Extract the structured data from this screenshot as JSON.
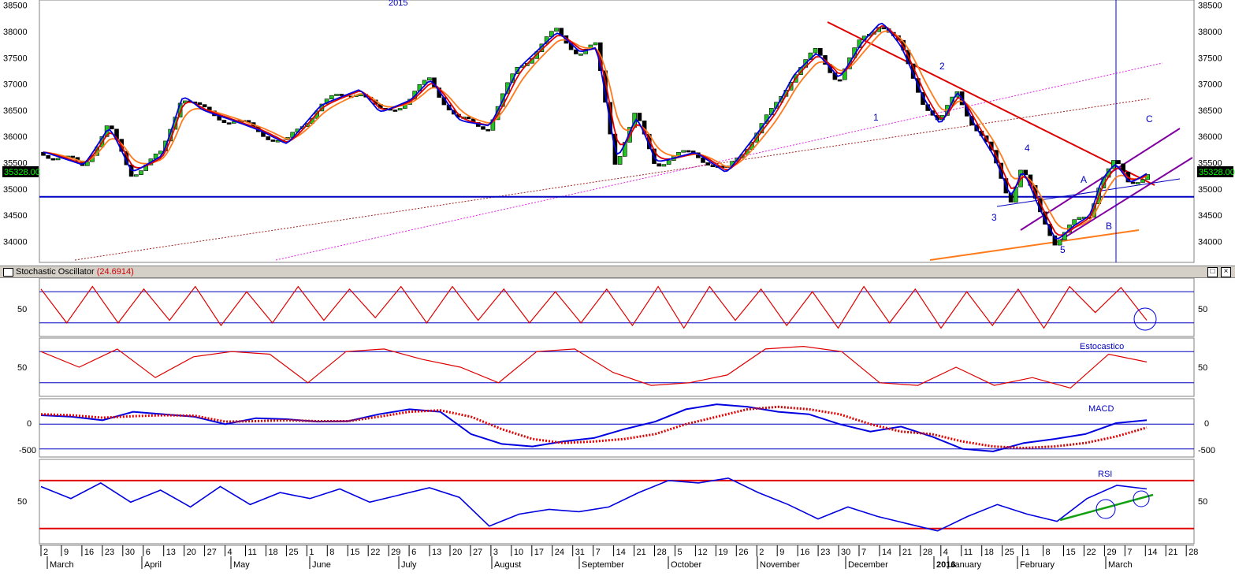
{
  "price_axis": {
    "ticks": [
      "38500",
      "38000",
      "37500",
      "37000",
      "36500",
      "36000",
      "35500",
      "35000",
      "34500",
      "34000"
    ]
  },
  "price": {
    "current_label": "35328.00",
    "year_label": "2015",
    "wave_labels": [
      "1",
      "2",
      "3",
      "4",
      "5",
      "A",
      "B",
      "C"
    ]
  },
  "stochastic": {
    "title": "Stochastic Oscillator",
    "value": "(24.6914)",
    "tick": "50"
  },
  "estocastico": {
    "label": "Estocastico",
    "tick": "50"
  },
  "macd": {
    "label": "MACD",
    "ticks": [
      "0",
      "-500"
    ]
  },
  "rsi": {
    "label": "RSI",
    "tick": "50"
  },
  "time_axis": {
    "days": [
      "2",
      "9",
      "16",
      "23",
      "30",
      "6",
      "13",
      "20",
      "27",
      "4",
      "11",
      "18",
      "25",
      "1",
      "8",
      "15",
      "22",
      "29",
      "6",
      "13",
      "20",
      "27",
      "3",
      "10",
      "17",
      "24",
      "31",
      "7",
      "14",
      "21",
      "28",
      "5",
      "12",
      "19",
      "26",
      "2",
      "9",
      "16",
      "23",
      "30",
      "7",
      "14",
      "21",
      "28",
      "4",
      "11",
      "18",
      "25",
      "1",
      "8",
      "15",
      "22",
      "29",
      "7",
      "14",
      "21",
      "28"
    ],
    "months": [
      "March",
      "April",
      "May",
      "June",
      "July",
      "August",
      "September",
      "October",
      "November",
      "December",
      "2016",
      "January",
      "February",
      "March"
    ]
  },
  "colors": {
    "bull_candle": "#22c422",
    "bear_candle": "#000000",
    "ema_fast": "#0000e0",
    "ema_mid": "#e00000",
    "ema_slow": "#ff7a1a",
    "support_line": "#0000c0",
    "channel": "#8000a0",
    "rsi_bounds": "#e00000"
  },
  "chart_data": [
    {
      "type": "candlestick",
      "title": "",
      "ylim": [
        33600,
        38600
      ],
      "x_range": [
        "2015-03-02",
        "2016-03-28"
      ],
      "series": [
        {
          "name": "close",
          "values": [
            {
              "d": "2015-03-02",
              "v": 35700
            },
            {
              "d": "2015-03-16",
              "v": 35450
            },
            {
              "d": "2015-03-25",
              "v": 36200
            },
            {
              "d": "2015-04-02",
              "v": 35300
            },
            {
              "d": "2015-04-13",
              "v": 35650
            },
            {
              "d": "2015-04-20",
              "v": 36800
            },
            {
              "d": "2015-04-27",
              "v": 36500
            },
            {
              "d": "2015-05-08",
              "v": 36300
            },
            {
              "d": "2015-05-18",
              "v": 36100
            },
            {
              "d": "2015-05-27",
              "v": 35850
            },
            {
              "d": "2015-06-08",
              "v": 36600
            },
            {
              "d": "2015-06-22",
              "v": 36900
            },
            {
              "d": "2015-06-29",
              "v": 36450
            },
            {
              "d": "2015-07-10",
              "v": 36700
            },
            {
              "d": "2015-07-17",
              "v": 37100
            },
            {
              "d": "2015-07-27",
              "v": 36300
            },
            {
              "d": "2015-08-07",
              "v": 36200
            },
            {
              "d": "2015-08-17",
              "v": 37300
            },
            {
              "d": "2015-08-31",
              "v": 38000
            },
            {
              "d": "2015-09-08",
              "v": 37600
            },
            {
              "d": "2015-09-14",
              "v": 37700
            },
            {
              "d": "2015-09-21",
              "v": 35500
            },
            {
              "d": "2015-09-28",
              "v": 36400
            },
            {
              "d": "2015-10-05",
              "v": 35500
            },
            {
              "d": "2015-10-19",
              "v": 35700
            },
            {
              "d": "2015-10-30",
              "v": 35300
            },
            {
              "d": "2015-11-06",
              "v": 35800
            },
            {
              "d": "2015-11-16",
              "v": 36500
            },
            {
              "d": "2015-11-23",
              "v": 37200
            },
            {
              "d": "2015-12-01",
              "v": 37600
            },
            {
              "d": "2015-12-09",
              "v": 37100
            },
            {
              "d": "2015-12-17",
              "v": 37800
            },
            {
              "d": "2015-12-24",
              "v": 38200
            },
            {
              "d": "2015-12-31",
              "v": 37700
            },
            {
              "d": "2016-01-08",
              "v": 36700
            },
            {
              "d": "2016-01-14",
              "v": 36200
            },
            {
              "d": "2016-01-20",
              "v": 36900
            },
            {
              "d": "2016-01-26",
              "v": 36200
            },
            {
              "d": "2016-02-02",
              "v": 35600
            },
            {
              "d": "2016-02-08",
              "v": 34800
            },
            {
              "d": "2016-02-12",
              "v": 35400
            },
            {
              "d": "2016-02-18",
              "v": 34600
            },
            {
              "d": "2016-02-24",
              "v": 34000
            },
            {
              "d": "2016-03-01",
              "v": 34300
            },
            {
              "d": "2016-03-07",
              "v": 34500
            },
            {
              "d": "2016-03-11",
              "v": 35200
            },
            {
              "d": "2016-03-16",
              "v": 35500
            },
            {
              "d": "2016-03-21",
              "v": 35100
            },
            {
              "d": "2016-03-28",
              "v": 35328
            }
          ]
        }
      ],
      "horizontal_support": 34850,
      "current_value": 35328
    },
    {
      "type": "line",
      "title": "Stochastic Oscillator",
      "ylim": [
        0,
        100
      ],
      "bands": [
        20,
        80
      ],
      "series": [
        {
          "name": "%K",
          "values": [
            85,
            20,
            90,
            20,
            85,
            25,
            90,
            15,
            80,
            20,
            90,
            25,
            85,
            30,
            90,
            20,
            90,
            25,
            85,
            20,
            80,
            20,
            85,
            15,
            90,
            10,
            90,
            25,
            85,
            15,
            80,
            10,
            90,
            20,
            85,
            10,
            80,
            15,
            85,
            10,
            90,
            40,
            88,
            25
          ]
        }
      ]
    },
    {
      "type": "line",
      "title": "Estocastico",
      "ylim": [
        0,
        100
      ],
      "bands": [
        20,
        80
      ],
      "series": [
        {
          "name": "%K",
          "values": [
            80,
            50,
            85,
            30,
            70,
            80,
            75,
            20,
            80,
            85,
            65,
            50,
            20,
            80,
            85,
            40,
            15,
            20,
            35,
            85,
            90,
            80,
            20,
            15,
            50,
            15,
            30,
            10,
            75,
            60
          ]
        }
      ]
    },
    {
      "type": "line",
      "title": "MACD",
      "ylim": [
        -600,
        450
      ],
      "yticks": [
        0,
        -500
      ],
      "series": [
        {
          "name": "MACD",
          "values": [
            180,
            150,
            80,
            250,
            200,
            150,
            0,
            120,
            100,
            50,
            60,
            200,
            300,
            250,
            -200,
            -400,
            -450,
            -350,
            -280,
            -100,
            50,
            300,
            400,
            350,
            250,
            200,
            0,
            -150,
            -50,
            -250,
            -500,
            -550,
            -380,
            -300,
            -200,
            20,
            80
          ]
        },
        {
          "name": "Signal",
          "values": [
            200,
            180,
            130,
            160,
            180,
            170,
            50,
            60,
            80,
            60,
            60,
            150,
            250,
            280,
            150,
            -100,
            -300,
            -380,
            -350,
            -300,
            -200,
            0,
            150,
            300,
            350,
            300,
            200,
            0,
            -150,
            -200,
            -350,
            -450,
            -480,
            -450,
            -380,
            -250,
            -70
          ]
        }
      ]
    },
    {
      "type": "line",
      "title": "RSI",
      "ylim": [
        20,
        85
      ],
      "bands": [
        30,
        70
      ],
      "series": [
        {
          "name": "RSI",
          "values": [
            65,
            55,
            68,
            52,
            62,
            48,
            65,
            50,
            60,
            55,
            63,
            52,
            58,
            64,
            56,
            32,
            42,
            46,
            44,
            48,
            60,
            70,
            68,
            72,
            60,
            50,
            38,
            48,
            40,
            34,
            28,
            40,
            50,
            42,
            36,
            55,
            66,
            63
          ]
        }
      ]
    }
  ]
}
